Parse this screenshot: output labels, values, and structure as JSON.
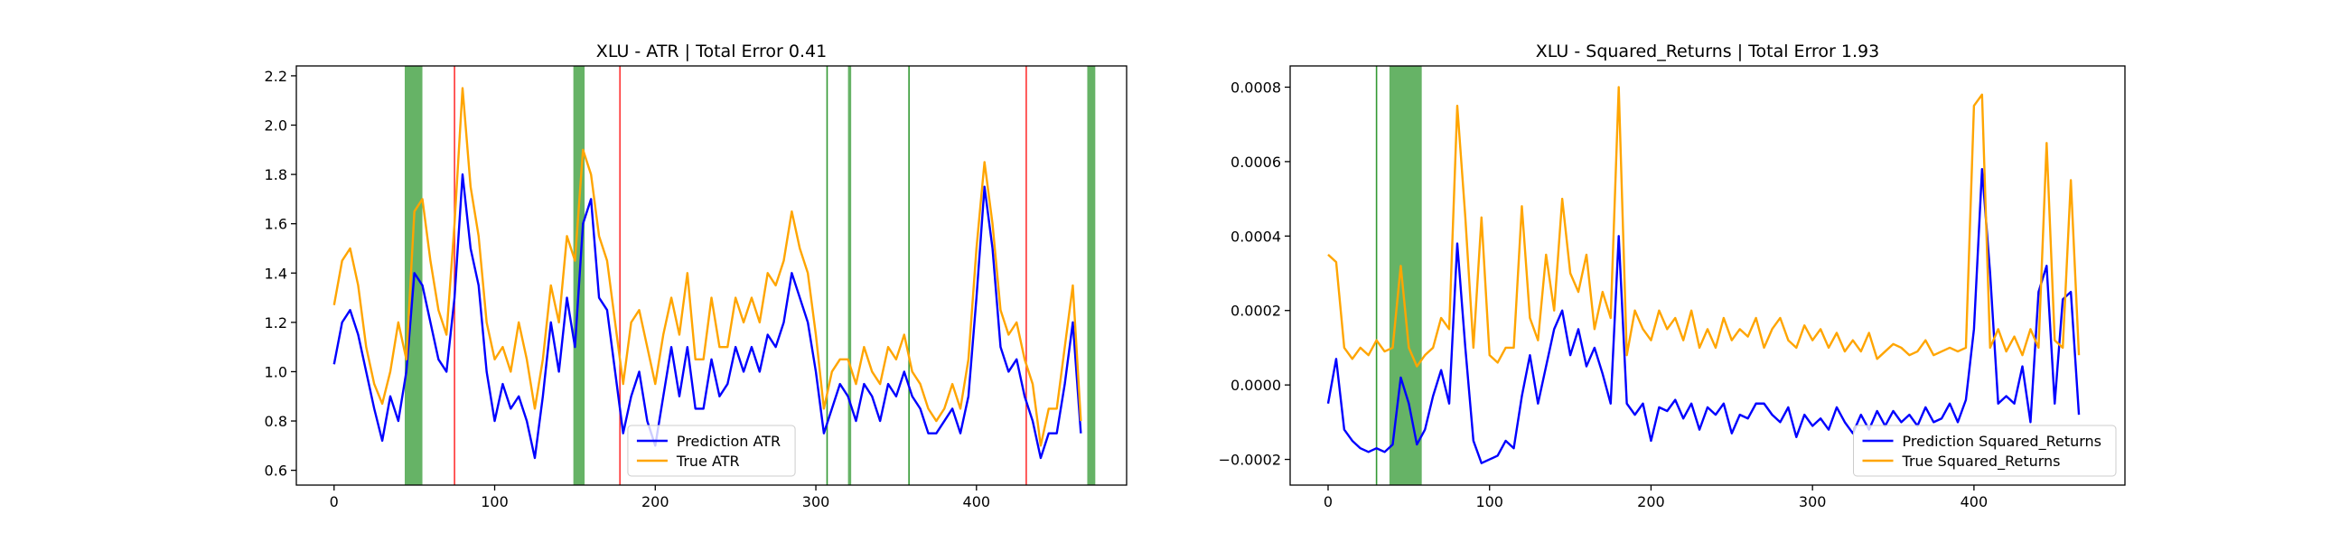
{
  "chart_data": [
    {
      "type": "line",
      "title": "XLU - ATR | Total Error 0.41",
      "x": [
        0,
        5,
        10,
        15,
        20,
        25,
        30,
        35,
        40,
        45,
        50,
        55,
        60,
        65,
        70,
        75,
        80,
        85,
        90,
        95,
        100,
        105,
        110,
        115,
        120,
        125,
        130,
        135,
        140,
        145,
        150,
        155,
        160,
        165,
        170,
        175,
        180,
        185,
        190,
        195,
        200,
        205,
        210,
        215,
        220,
        225,
        230,
        235,
        240,
        245,
        250,
        255,
        260,
        265,
        270,
        275,
        280,
        285,
        290,
        295,
        300,
        305,
        310,
        315,
        320,
        325,
        330,
        335,
        340,
        345,
        350,
        355,
        360,
        365,
        370,
        375,
        380,
        385,
        390,
        395,
        400,
        405,
        410,
        415,
        420,
        425,
        430,
        435,
        440,
        445,
        450,
        455,
        460,
        465
      ],
      "series": [
        {
          "name": "Prediction ATR",
          "color": "#0000ff",
          "values": [
            1.03,
            1.2,
            1.25,
            1.15,
            1.0,
            0.85,
            0.72,
            0.9,
            0.8,
            1.0,
            1.4,
            1.35,
            1.2,
            1.05,
            1.0,
            1.3,
            1.8,
            1.5,
            1.35,
            1.0,
            0.8,
            0.95,
            0.85,
            0.9,
            0.8,
            0.65,
            0.9,
            1.2,
            1.0,
            1.3,
            1.1,
            1.6,
            1.7,
            1.3,
            1.25,
            1.0,
            0.75,
            0.9,
            1.0,
            0.8,
            0.7,
            0.9,
            1.1,
            0.9,
            1.1,
            0.85,
            0.85,
            1.05,
            0.9,
            0.95,
            1.1,
            1.0,
            1.1,
            1.0,
            1.15,
            1.1,
            1.2,
            1.4,
            1.3,
            1.2,
            1.0,
            0.75,
            0.85,
            0.95,
            0.9,
            0.8,
            0.95,
            0.9,
            0.8,
            0.95,
            0.9,
            1.0,
            0.9,
            0.85,
            0.75,
            0.75,
            0.8,
            0.85,
            0.75,
            0.9,
            1.3,
            1.75,
            1.5,
            1.1,
            1.0,
            1.05,
            0.9,
            0.8,
            0.65,
            0.75,
            0.75,
            0.95,
            1.2,
            0.75
          ]
        },
        {
          "name": "True ATR",
          "color": "#ffa500",
          "values": [
            1.27,
            1.45,
            1.5,
            1.35,
            1.1,
            0.95,
            0.87,
            1.0,
            1.2,
            1.05,
            1.65,
            1.7,
            1.45,
            1.25,
            1.15,
            1.6,
            2.15,
            1.75,
            1.55,
            1.2,
            1.05,
            1.1,
            1.0,
            1.2,
            1.05,
            0.85,
            1.05,
            1.35,
            1.2,
            1.55,
            1.45,
            1.9,
            1.8,
            1.55,
            1.45,
            1.2,
            0.95,
            1.2,
            1.25,
            1.1,
            0.95,
            1.15,
            1.3,
            1.15,
            1.4,
            1.05,
            1.05,
            1.3,
            1.1,
            1.1,
            1.3,
            1.2,
            1.3,
            1.2,
            1.4,
            1.35,
            1.45,
            1.65,
            1.5,
            1.4,
            1.15,
            0.85,
            1.0,
            1.05,
            1.05,
            0.95,
            1.1,
            1.0,
            0.95,
            1.1,
            1.05,
            1.15,
            1.0,
            0.95,
            0.85,
            0.8,
            0.85,
            0.95,
            0.85,
            1.05,
            1.5,
            1.85,
            1.6,
            1.25,
            1.15,
            1.2,
            1.05,
            0.95,
            0.7,
            0.85,
            0.85,
            1.1,
            1.35,
            0.8
          ]
        }
      ],
      "xlim": [
        -23.5,
        493.5
      ],
      "xticks": [
        0,
        100,
        200,
        300,
        400
      ],
      "ylim": [
        0.54,
        2.24
      ],
      "yticks": [
        {
          "value": 0.6,
          "label": "0.6"
        },
        {
          "value": 0.8,
          "label": "0.8"
        },
        {
          "value": 1.0,
          "label": "1.0"
        },
        {
          "value": 1.2,
          "label": "1.2"
        },
        {
          "value": 1.4,
          "label": "1.4"
        },
        {
          "value": 1.6,
          "label": "1.6"
        },
        {
          "value": 1.8,
          "label": "1.8"
        },
        {
          "value": 2.0,
          "label": "2.0"
        },
        {
          "value": 2.2,
          "label": "2.2"
        }
      ],
      "vlines": [
        {
          "x": 75,
          "color": "red"
        },
        {
          "x": 178,
          "color": "red"
        },
        {
          "x": 431,
          "color": "red"
        },
        {
          "x": 307,
          "color": "green"
        },
        {
          "x": 358,
          "color": "green"
        }
      ],
      "spans": [
        {
          "x0": 44,
          "x1": 55
        },
        {
          "x0": 149,
          "x1": 156
        },
        {
          "x0": 320,
          "x1": 322
        },
        {
          "x0": 469,
          "x1": 474
        }
      ],
      "span_color": "green",
      "legend": "lower center"
    },
    {
      "type": "line",
      "title": "XLU - Squared_Returns | Total Error 1.93",
      "x": [
        0,
        5,
        10,
        15,
        20,
        25,
        30,
        35,
        40,
        45,
        50,
        55,
        60,
        65,
        70,
        75,
        80,
        85,
        90,
        95,
        100,
        105,
        110,
        115,
        120,
        125,
        130,
        135,
        140,
        145,
        150,
        155,
        160,
        165,
        170,
        175,
        180,
        185,
        190,
        195,
        200,
        205,
        210,
        215,
        220,
        225,
        230,
        235,
        240,
        245,
        250,
        255,
        260,
        265,
        270,
        275,
        280,
        285,
        290,
        295,
        300,
        305,
        310,
        315,
        320,
        325,
        330,
        335,
        340,
        345,
        350,
        355,
        360,
        365,
        370,
        375,
        380,
        385,
        390,
        395,
        400,
        405,
        410,
        415,
        420,
        425,
        430,
        435,
        440,
        445,
        450,
        455,
        460,
        465
      ],
      "series": [
        {
          "name": "Prediction Squared_Returns",
          "color": "#0000ff",
          "values": [
            -5e-05,
            7e-05,
            -0.00012,
            -0.00015,
            -0.00017,
            -0.00018,
            -0.00017,
            -0.00018,
            -0.00016,
            2e-05,
            -5e-05,
            -0.00016,
            -0.00012,
            -3e-05,
            4e-05,
            -5e-05,
            0.00038,
            0.0001,
            -0.00015,
            -0.00021,
            -0.0002,
            -0.00019,
            -0.00015,
            -0.00017,
            -3e-05,
            8e-05,
            -5e-05,
            5e-05,
            0.00015,
            0.0002,
            8e-05,
            0.00015,
            5e-05,
            0.0001,
            3e-05,
            -5e-05,
            0.0004,
            -5e-05,
            -8e-05,
            -5e-05,
            -0.00015,
            -6e-05,
            -7e-05,
            -4e-05,
            -9e-05,
            -5e-05,
            -0.00012,
            -6e-05,
            -8e-05,
            -5e-05,
            -0.00013,
            -8e-05,
            -9e-05,
            -5e-05,
            -5e-05,
            -8e-05,
            -0.0001,
            -6e-05,
            -0.00014,
            -8e-05,
            -0.00011,
            -9e-05,
            -0.00012,
            -6e-05,
            -0.0001,
            -0.00013,
            -8e-05,
            -0.00012,
            -7e-05,
            -0.00011,
            -7e-05,
            -0.0001,
            -8e-05,
            -0.00011,
            -6e-05,
            -0.0001,
            -9e-05,
            -5e-05,
            -0.0001,
            -4e-05,
            0.00015,
            0.00058,
            0.0003,
            -5e-05,
            -3e-05,
            -5e-05,
            5e-05,
            -0.0001,
            0.00025,
            0.00032,
            -5e-05,
            0.00023,
            0.00025,
            -8e-05
          ]
        },
        {
          "name": "True Squared_Returns",
          "color": "#ffa500",
          "values": [
            0.00035,
            0.00033,
            0.0001,
            7e-05,
            0.0001,
            8e-05,
            0.00012,
            9e-05,
            0.0001,
            0.00032,
            0.0001,
            5e-05,
            8e-05,
            0.0001,
            0.00018,
            0.00015,
            0.00075,
            0.00045,
            0.0001,
            0.00045,
            8e-05,
            6e-05,
            0.0001,
            0.0001,
            0.00048,
            0.00018,
            0.00012,
            0.00035,
            0.0002,
            0.0005,
            0.0003,
            0.00025,
            0.00035,
            0.00015,
            0.00025,
            0.00018,
            0.0008,
            8e-05,
            0.0002,
            0.00015,
            0.00012,
            0.0002,
            0.00015,
            0.00018,
            0.00012,
            0.0002,
            0.0001,
            0.00015,
            0.0001,
            0.00018,
            0.00012,
            0.00015,
            0.00013,
            0.00018,
            0.0001,
            0.00015,
            0.00018,
            0.00012,
            0.0001,
            0.00016,
            0.00012,
            0.00015,
            0.0001,
            0.00014,
            9e-05,
            0.00012,
            9e-05,
            0.00014,
            7e-05,
            9e-05,
            0.00011,
            0.0001,
            8e-05,
            9e-05,
            0.00012,
            8e-05,
            9e-05,
            0.0001,
            9e-05,
            0.0001,
            0.00075,
            0.00078,
            0.0001,
            0.00015,
            9e-05,
            0.00013,
            8e-05,
            0.00015,
            0.0001,
            0.00065,
            0.00012,
            0.0001,
            0.00055,
            8e-05
          ]
        }
      ],
      "xlim": [
        -23.5,
        493.5
      ],
      "xticks": [
        0,
        100,
        200,
        300,
        400
      ],
      "ylim": [
        -0.000269,
        0.000857
      ],
      "yticks": [
        {
          "value": -0.0002,
          "label": "−0.0002"
        },
        {
          "value": 0,
          "label": "0.0000"
        },
        {
          "value": 0.0002,
          "label": "0.0002"
        },
        {
          "value": 0.0004,
          "label": "0.0004"
        },
        {
          "value": 0.0006,
          "label": "0.0006"
        },
        {
          "value": 0.0008,
          "label": "0.0008"
        }
      ],
      "vlines": [
        {
          "x": 30,
          "color": "green"
        }
      ],
      "spans": [
        {
          "x0": 38,
          "x1": 58
        }
      ],
      "span_color": "green",
      "legend": "lower right"
    }
  ]
}
